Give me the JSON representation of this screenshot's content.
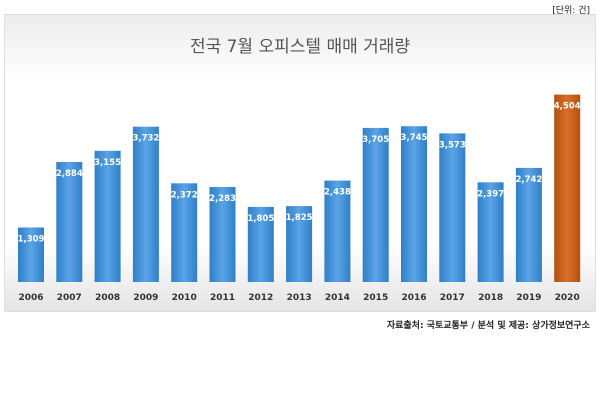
{
  "unit_note": "[단위: 건]",
  "source_note": "자료출처: 국토교통부 / 분석 및 제공: 상가정보연구소",
  "colors": {
    "bar": "#3f8fd6",
    "bar_light": "#6fb2ea",
    "highlight": "#c05a12",
    "highlight_light": "#e0782c",
    "label_text": "#ffffff"
  },
  "chart_data": {
    "type": "bar",
    "title": "전국 7월 오피스텔 매매 거래량",
    "categories": [
      "2006",
      "2007",
      "2008",
      "2009",
      "2010",
      "2011",
      "2012",
      "2013",
      "2014",
      "2015",
      "2016",
      "2017",
      "2018",
      "2019",
      "2020"
    ],
    "values": [
      1309,
      2884,
      3155,
      3732,
      2372,
      2283,
      1805,
      1825,
      2438,
      3705,
      3745,
      3573,
      2397,
      2742,
      4504
    ],
    "value_labels": [
      "1,309",
      "2,884",
      "3,155",
      "3,732",
      "2,372",
      "2,283",
      "1,805",
      "1,825",
      "2,438",
      "3,705",
      "3,745",
      "3,573",
      "2,397",
      "2,742",
      "4,504"
    ],
    "highlight_category": "2020",
    "ylim": [
      0,
      5000
    ],
    "grid": false,
    "legend": "none"
  }
}
